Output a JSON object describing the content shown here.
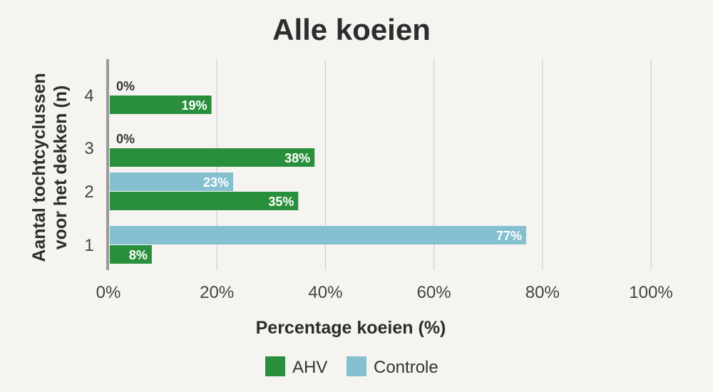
{
  "chart_data": {
    "type": "bar",
    "orientation": "horizontal",
    "title": "Alle koeien",
    "xlabel": "Percentage koeien (%)",
    "ylabel_lines": [
      "Aantal tochtcyclussen",
      "voor het dekken (n)"
    ],
    "categories": [
      "4",
      "3",
      "2",
      "1"
    ],
    "series": [
      {
        "name": "Controle",
        "color": "#84c0cf",
        "values": [
          0,
          0,
          23,
          77
        ],
        "labels": [
          "0%",
          "0%",
          "23%",
          "77%"
        ]
      },
      {
        "name": "AHV",
        "color": "#2a8f3c",
        "values": [
          19,
          38,
          35,
          8
        ],
        "labels": [
          "19%",
          "38%",
          "35%",
          "8%"
        ]
      }
    ],
    "xlim": [
      0,
      100
    ],
    "xticks": [
      "0%",
      "20%",
      "40%",
      "60%",
      "80%",
      "100%"
    ],
    "grid": true,
    "legend": {
      "placement": "bottom",
      "entries": [
        "AHV",
        "Controle"
      ]
    }
  }
}
